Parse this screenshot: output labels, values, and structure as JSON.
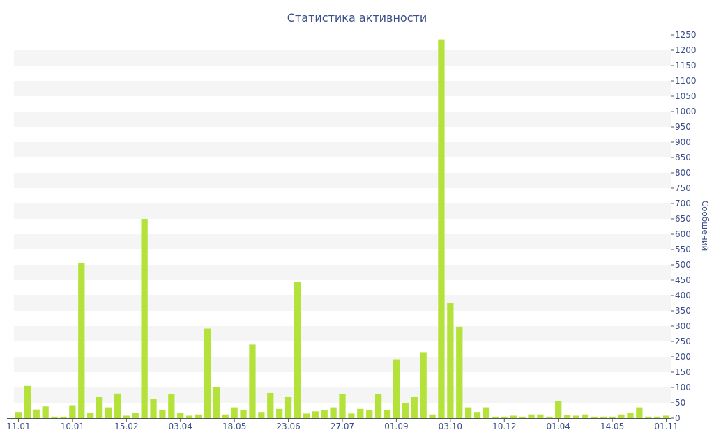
{
  "chart_data": {
    "type": "bar",
    "title": "Статистика активности",
    "xlabel": "",
    "ylabel": "Сообщений",
    "ylim": [
      0,
      1250
    ],
    "y_tick_step": 50,
    "grid": "horizontal alternating bands",
    "y_axis_side": "right",
    "x_tick_labels": [
      "11.01",
      "10.01",
      "15.02",
      "03.04",
      "18.05",
      "23.06",
      "27.07",
      "01.09",
      "03.10",
      "10.12",
      "01.04",
      "14.05",
      "01.11"
    ],
    "x_tick_bar_index": [
      0,
      6,
      12,
      18,
      24,
      30,
      36,
      42,
      48,
      54,
      60,
      66,
      72
    ],
    "values": [
      20,
      105,
      28,
      38,
      5,
      5,
      42,
      505,
      16,
      70,
      35,
      80,
      8,
      16,
      650,
      62,
      25,
      78,
      16,
      8,
      12,
      292,
      100,
      12,
      35,
      25,
      240,
      20,
      82,
      30,
      70,
      445,
      15,
      22,
      25,
      35,
      78,
      15,
      30,
      25,
      78,
      25,
      192,
      48,
      70,
      215,
      12,
      1235,
      375,
      298,
      35,
      20,
      35,
      5,
      5,
      8,
      5,
      12,
      12,
      5,
      55,
      10,
      8,
      12,
      5,
      5,
      5,
      12,
      16,
      35,
      5,
      5,
      8
    ],
    "bar_color": "#b5e23a",
    "band_color": "#f5f5f5",
    "text_color": "#3c4f8a"
  }
}
